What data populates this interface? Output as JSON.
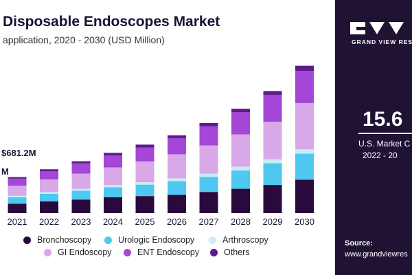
{
  "header": {
    "title": "Disposable Endoscopes Market",
    "subtitle": "application, 2020 - 2030 (USD Million)"
  },
  "annotations": {
    "value_2020": "$681.2M",
    "partial_label": "M"
  },
  "colors": {
    "Bronchoscopy": "#2a0a3d",
    "Urologic Endoscopy": "#4ec8f0",
    "Arthroscopy": "#c9ecf7",
    "GI Endoscopy": "#d8a8e8",
    "ENT Endoscopy": "#a446d6",
    "Others": "#5c1a8a",
    "panel_bg": "#1f1233"
  },
  "chart_data": {
    "type": "bar",
    "stacked": true,
    "title": "Disposable Endoscopes Market",
    "subtitle": "application, 2020 - 2030 (USD Million)",
    "categories": [
      "2021",
      "2022",
      "2023",
      "2024",
      "2025",
      "2026",
      "2027",
      "2028",
      "2029",
      "2030"
    ],
    "series": [
      {
        "name": "Bronchoscopy",
        "values": [
          150,
          185,
          215,
          250,
          270,
          290,
          335,
          385,
          445,
          530
        ]
      },
      {
        "name": "Urologic Endoscopy",
        "values": [
          100,
          120,
          140,
          160,
          180,
          215,
          240,
          290,
          345,
          410
        ]
      },
      {
        "name": "Arthroscopy",
        "values": [
          25,
          28,
          30,
          33,
          38,
          45,
          50,
          60,
          60,
          70
        ]
      },
      {
        "name": "GI Endoscopy",
        "values": [
          160,
          200,
          240,
          280,
          330,
          380,
          445,
          510,
          595,
          730
        ]
      },
      {
        "name": "ENT Endoscopy",
        "values": [
          110,
          130,
          160,
          190,
          220,
          255,
          305,
          350,
          425,
          510
        ]
      },
      {
        "name": "Others",
        "values": [
          25,
          30,
          35,
          40,
          45,
          45,
          50,
          55,
          60,
          80
        ]
      }
    ],
    "ylim": [
      0,
      2500
    ],
    "grid": false,
    "legend": "bottom"
  },
  "legend_items": [
    {
      "label": "Bronchoscopy",
      "color": "#2a0a3d"
    },
    {
      "label": "Urologic Endoscopy",
      "color": "#4ec8f0"
    },
    {
      "label": "Arthroscopy",
      "color": "#c9ecf7"
    },
    {
      "label": "GI Endoscopy",
      "color": "#d8a8e8"
    },
    {
      "label": "ENT Endoscopy",
      "color": "#a446d6"
    },
    {
      "label": "Others",
      "color": "#5c1a8a"
    }
  ],
  "side_panel": {
    "brand": "GRAND VIEW RES",
    "big_value": "15.6",
    "metric_label": "U.S. Market C",
    "range": "2022 - 20",
    "source_label": "Source:",
    "source_url": "www.grandviewres"
  }
}
